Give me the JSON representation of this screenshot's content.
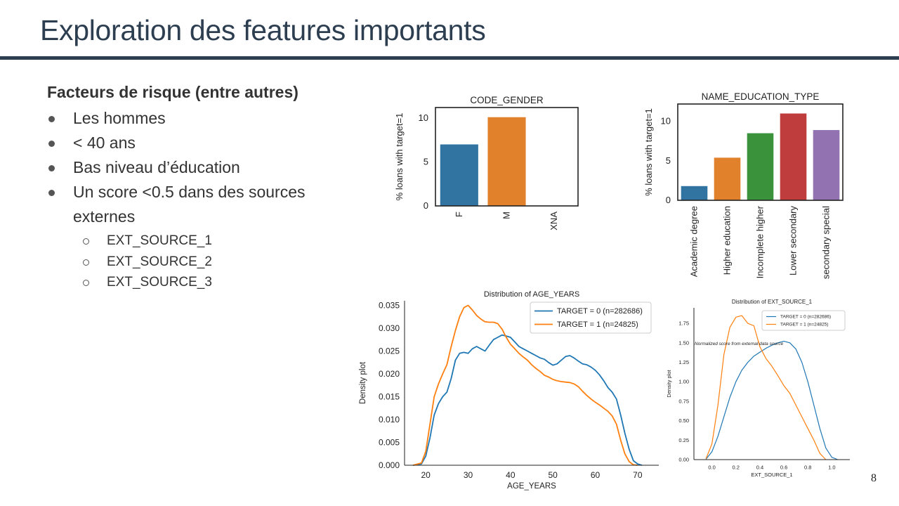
{
  "slide": {
    "title": "Exploration des features importants",
    "page_number": "8"
  },
  "content": {
    "heading": "Facteurs de risque (entre autres)",
    "bullets": [
      "Les hommes",
      "< 40 ans",
      "Bas niveau d’éducation",
      "Un score <0.5 dans des sources externes"
    ],
    "sub_bullets": [
      "EXT_SOURCE_1",
      "EXT_SOURCE_2",
      "EXT_SOURCE_3"
    ]
  },
  "colors": {
    "title": "#2c3e50",
    "blue": "#1f77b4",
    "orange": "#ff7f0e",
    "seaborn_blue": "#3274a1",
    "seaborn_orange": "#e1812c",
    "seaborn_green": "#3a923a",
    "seaborn_red": "#c03d3e",
    "seaborn_purple": "#9372b2"
  },
  "chart_data": [
    {
      "type": "bar",
      "title": "CODE_GENDER",
      "ylabel": "% loans with target=1",
      "categories": [
        "F",
        "M",
        "XNA"
      ],
      "values": [
        7.0,
        10.1,
        0
      ],
      "colors": [
        "#3274a1",
        "#e1812c",
        "#3a923a"
      ],
      "ylim": [
        0,
        11.2
      ],
      "yticks": [
        "0",
        "5",
        "10"
      ]
    },
    {
      "type": "bar",
      "title": "NAME_EDUCATION_TYPE",
      "ylabel": "% loans with target=1",
      "categories": [
        "Academic degree",
        "Higher education",
        "Incomplete higher",
        "Lower secondary",
        "secondary special"
      ],
      "values": [
        1.8,
        5.4,
        8.5,
        11.0,
        8.9
      ],
      "colors": [
        "#3274a1",
        "#e1812c",
        "#3a923a",
        "#c03d3e",
        "#9372b2"
      ],
      "ylim": [
        0,
        12.2
      ],
      "yticks": [
        "0",
        "5",
        "10"
      ]
    },
    {
      "type": "line",
      "title": "Distribution of AGE_YEARS",
      "xlabel": "AGE_YEARS",
      "ylabel": "Density plot",
      "xlim": [
        15,
        75
      ],
      "ylim": [
        0,
        0.036
      ],
      "xticks": [
        "20",
        "30",
        "40",
        "50",
        "60",
        "70"
      ],
      "yticks": [
        "0.000",
        "0.005",
        "0.010",
        "0.015",
        "0.020",
        "0.025",
        "0.030",
        "0.035"
      ],
      "legend": "top-right",
      "series": [
        {
          "name": "TARGET = 0 (n=282686)",
          "color": "#1f77b4",
          "x": [
            17,
            19,
            20,
            21,
            22,
            23,
            24,
            25,
            26,
            27,
            28,
            29,
            30,
            31,
            32,
            33,
            34,
            35,
            36,
            37,
            38,
            39,
            40,
            41,
            42,
            43,
            44,
            45,
            46,
            47,
            48,
            49,
            50,
            51,
            52,
            53,
            54,
            55,
            56,
            57,
            58,
            59,
            60,
            61,
            62,
            63,
            64,
            65,
            66,
            67,
            68,
            69,
            70,
            71
          ],
          "y": [
            0,
            0.0003,
            0.002,
            0.006,
            0.011,
            0.0135,
            0.015,
            0.016,
            0.019,
            0.023,
            0.0245,
            0.0247,
            0.0245,
            0.0255,
            0.026,
            0.0255,
            0.025,
            0.0263,
            0.0275,
            0.028,
            0.0285,
            0.0283,
            0.028,
            0.027,
            0.026,
            0.0255,
            0.025,
            0.0245,
            0.024,
            0.0235,
            0.0232,
            0.0225,
            0.0219,
            0.0222,
            0.023,
            0.0238,
            0.024,
            0.0235,
            0.0228,
            0.0222,
            0.022,
            0.0215,
            0.0208,
            0.0198,
            0.0185,
            0.017,
            0.016,
            0.0145,
            0.011,
            0.007,
            0.0035,
            0.001,
            0.0003,
            0
          ]
        },
        {
          "name": "TARGET = 1 (n=24825)",
          "color": "#ff7f0e",
          "x": [
            17,
            19,
            20,
            21,
            22,
            23,
            24,
            25,
            26,
            27,
            28,
            29,
            30,
            31,
            32,
            33,
            34,
            35,
            36,
            37,
            38,
            39,
            40,
            41,
            42,
            43,
            44,
            45,
            46,
            47,
            48,
            49,
            50,
            51,
            52,
            53,
            54,
            55,
            56,
            57,
            58,
            59,
            60,
            61,
            62,
            63,
            64,
            65,
            66,
            67,
            68,
            69,
            70
          ],
          "y": [
            0,
            0.0005,
            0.003,
            0.009,
            0.015,
            0.0178,
            0.02,
            0.022,
            0.026,
            0.0295,
            0.0325,
            0.0345,
            0.035,
            0.034,
            0.0328,
            0.032,
            0.0314,
            0.0313,
            0.0313,
            0.031,
            0.0298,
            0.028,
            0.0265,
            0.0255,
            0.0245,
            0.0237,
            0.023,
            0.022,
            0.0212,
            0.0205,
            0.0197,
            0.0193,
            0.0188,
            0.0185,
            0.0183,
            0.0182,
            0.0181,
            0.0178,
            0.0172,
            0.0162,
            0.0153,
            0.0145,
            0.0138,
            0.0132,
            0.0125,
            0.0118,
            0.0108,
            0.009,
            0.0055,
            0.0025,
            0.0008,
            0.0001,
            0
          ]
        }
      ]
    },
    {
      "type": "line",
      "title": "Distribution of EXT_SOURCE_1",
      "xlabel": "EXT_SOURCE_1",
      "ylabel": "Density plot",
      "xlim": [
        -0.15,
        1.15
      ],
      "ylim": [
        0,
        1.95
      ],
      "xticks": [
        "0.0",
        "0.2",
        "0.4",
        "0.6",
        "0.8",
        "1.0"
      ],
      "yticks": [
        "0.00",
        "0.25",
        "0.50",
        "0.75",
        "1.00",
        "1.25",
        "1.50",
        "1.75"
      ],
      "legend": "top-right",
      "annotation": "Normalized score from external data source",
      "series": [
        {
          "name": "TARGET = 0 (n=282686)",
          "color": "#1f77b4",
          "x": [
            -0.05,
            0,
            0.05,
            0.1,
            0.15,
            0.2,
            0.25,
            0.3,
            0.35,
            0.4,
            0.45,
            0.5,
            0.55,
            0.6,
            0.65,
            0.7,
            0.75,
            0.8,
            0.85,
            0.9,
            0.95,
            1.0,
            1.05
          ],
          "y": [
            0.005,
            0.1,
            0.3,
            0.55,
            0.8,
            1.0,
            1.15,
            1.25,
            1.33,
            1.38,
            1.43,
            1.47,
            1.5,
            1.52,
            1.5,
            1.42,
            1.25,
            1.0,
            0.7,
            0.4,
            0.15,
            0.03,
            0
          ]
        },
        {
          "name": "TARGET = 1 (n=24825)",
          "color": "#ff7f0e",
          "x": [
            -0.05,
            0,
            0.05,
            0.1,
            0.15,
            0.2,
            0.25,
            0.3,
            0.35,
            0.4,
            0.45,
            0.5,
            0.55,
            0.6,
            0.65,
            0.7,
            0.75,
            0.8,
            0.85,
            0.9,
            0.95
          ],
          "y": [
            0.01,
            0.2,
            0.7,
            1.35,
            1.7,
            1.83,
            1.85,
            1.75,
            1.72,
            1.45,
            1.3,
            1.2,
            1.08,
            0.95,
            0.85,
            0.7,
            0.55,
            0.4,
            0.25,
            0.08,
            0
          ]
        }
      ]
    }
  ]
}
